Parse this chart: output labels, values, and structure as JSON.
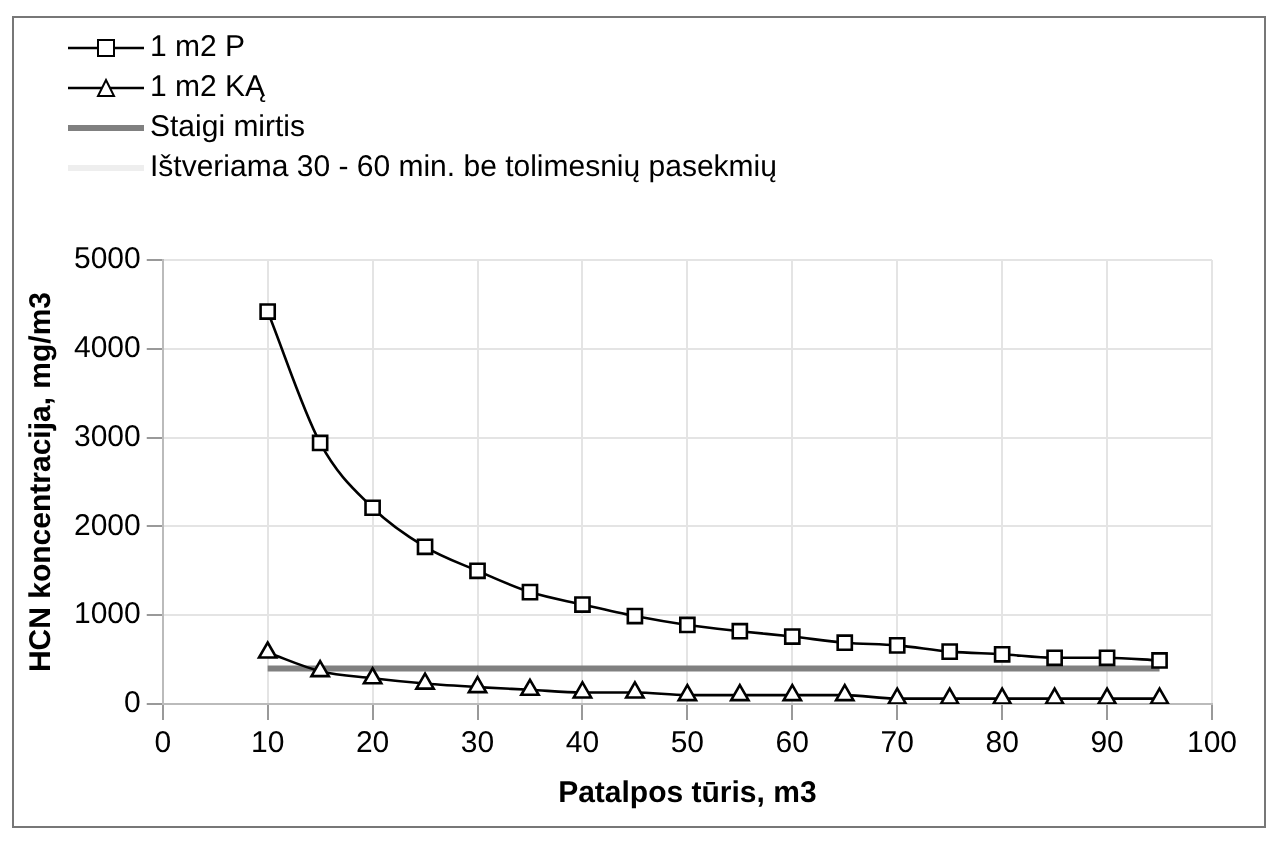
{
  "chart_data": {
    "type": "line",
    "xlabel": "Patalpos tūris, m3",
    "ylabel": "HCN koncentracija, mg/m3",
    "x": [
      10,
      15,
      20,
      25,
      30,
      35,
      40,
      45,
      50,
      55,
      60,
      65,
      70,
      75,
      80,
      85,
      90,
      95
    ],
    "xlim": [
      0,
      100
    ],
    "xticks": [
      0,
      10,
      20,
      30,
      40,
      50,
      60,
      70,
      80,
      90,
      100
    ],
    "ylim": [
      0,
      5000
    ],
    "yticks": [
      0,
      1000,
      2000,
      3000,
      4000,
      5000
    ],
    "grid": true,
    "legend": "top left",
    "series": [
      {
        "name": "1 m2 P",
        "color": "#000000",
        "marker": "square",
        "values": [
          4420,
          2940,
          2210,
          1770,
          1500,
          1260,
          1120,
          990,
          890,
          820,
          760,
          690,
          660,
          590,
          560,
          520,
          520,
          490
        ]
      },
      {
        "name": "1 m2 KĄ",
        "color": "#000000",
        "marker": "triangle",
        "values": [
          580,
          370,
          290,
          230,
          190,
          160,
          130,
          130,
          100,
          100,
          100,
          100,
          60,
          60,
          60,
          60,
          60,
          60
        ]
      },
      {
        "name": "Staigi mirtis",
        "color": "#808080",
        "marker": "none",
        "values": [
          400,
          400,
          400,
          400,
          400,
          400,
          400,
          400,
          400,
          400,
          400,
          400,
          400,
          400,
          400,
          400,
          400,
          400
        ]
      },
      {
        "name": "Ištveriama 30 - 60 min. be tolimesnių pasekmių",
        "color": "#eeeeee",
        "marker": "none",
        "values": [
          null,
          null,
          null,
          null,
          null,
          null,
          null,
          null,
          null,
          null,
          null,
          null,
          null,
          null,
          null,
          null,
          null,
          null
        ]
      }
    ]
  }
}
